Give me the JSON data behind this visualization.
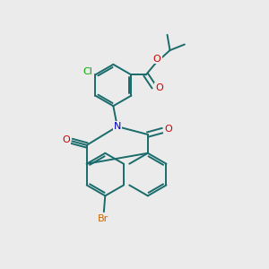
{
  "background_color": "#ebebeb",
  "atom_colors": {
    "C": "#1a6b6b",
    "N": "#0000cc",
    "O": "#cc0000",
    "Cl": "#00aa00",
    "Br": "#cc6600"
  },
  "bond_color": "#1a6b6b",
  "bond_width": 1.4,
  "figsize": [
    3.0,
    3.0
  ],
  "dpi": 100
}
